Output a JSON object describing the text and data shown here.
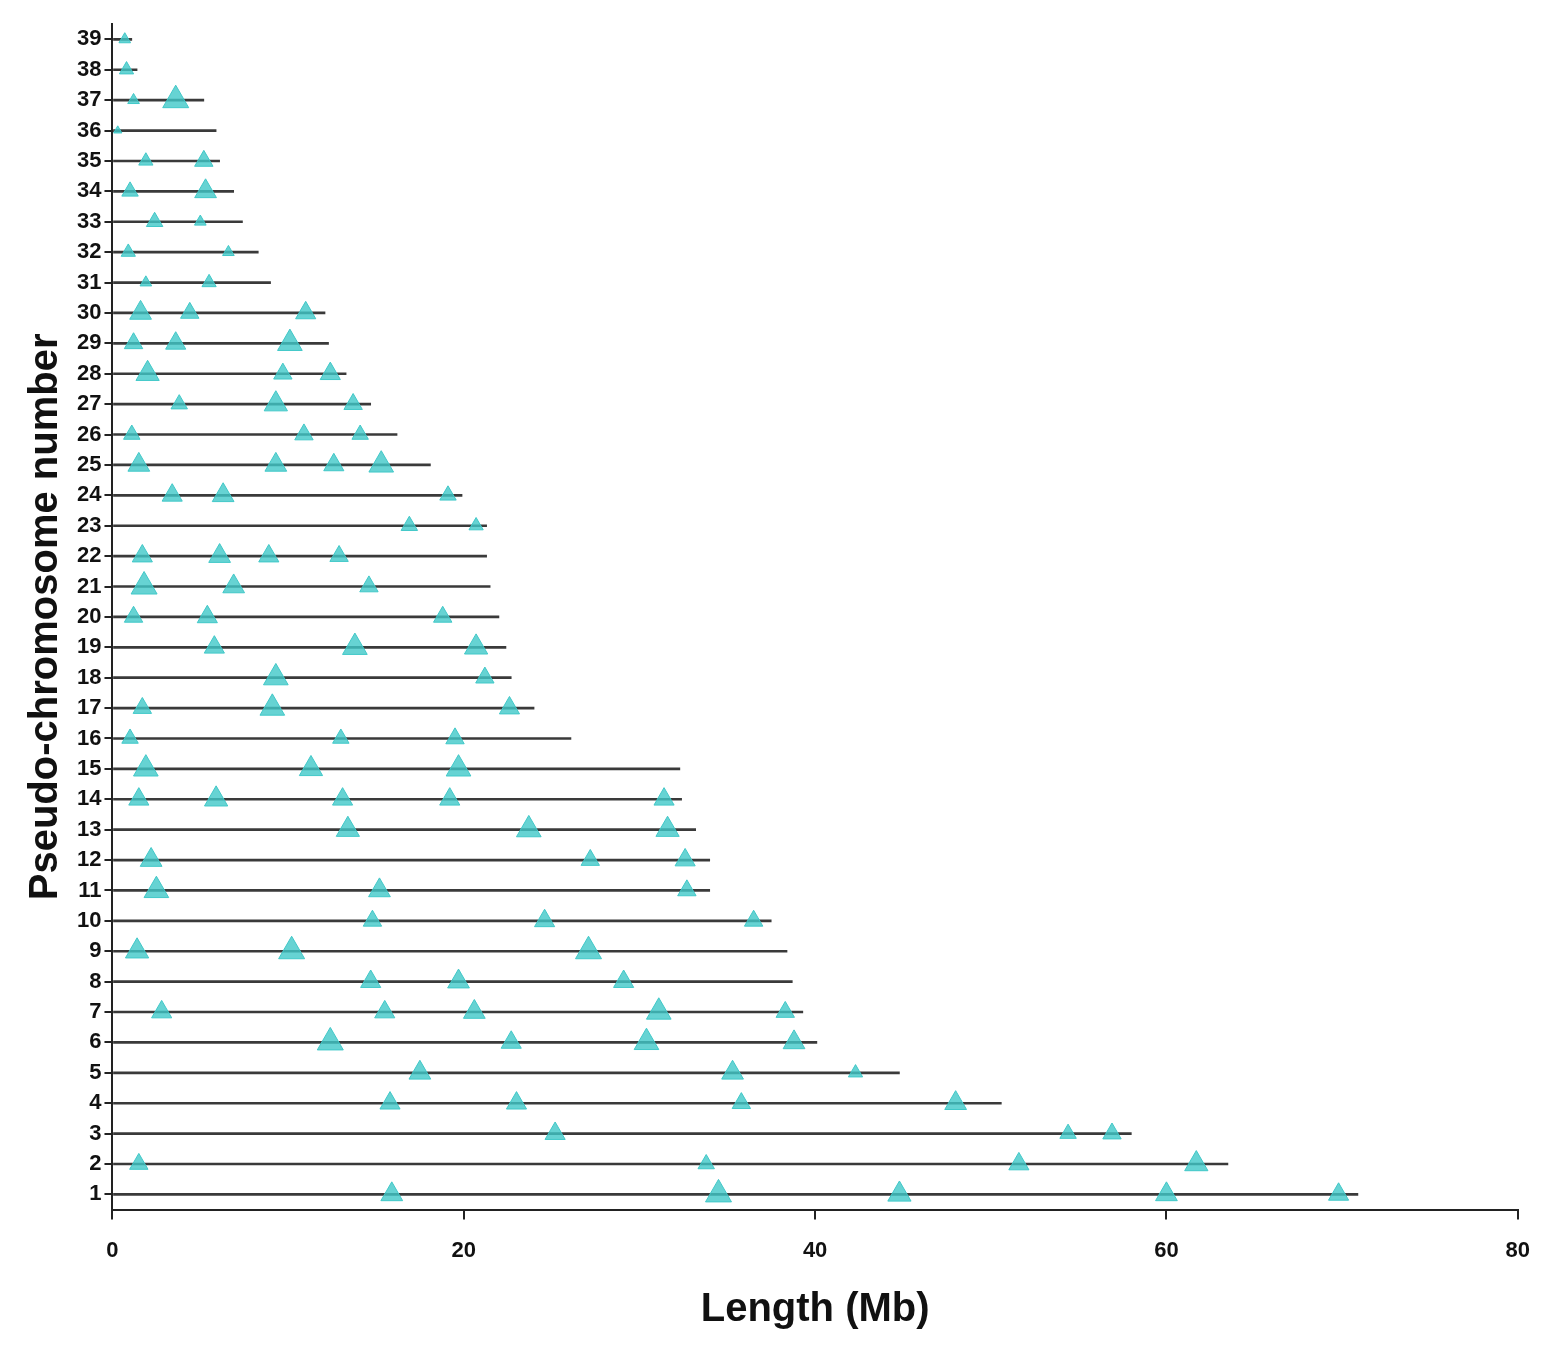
{
  "chart_data": {
    "type": "bar",
    "orientation": "horizontal",
    "xlabel": "Length (Mb)",
    "ylabel": "Pseudo-chromosome number",
    "categories": [
      "39",
      "38",
      "37",
      "36",
      "35",
      "34",
      "33",
      "32",
      "31",
      "30",
      "29",
      "28",
      "27",
      "26",
      "25",
      "24",
      "23",
      "22",
      "21",
      "20",
      "19",
      "18",
      "17",
      "16",
      "15",
      "14",
      "13",
      "12",
      "11",
      "10",
      "9",
      "8",
      "7",
      "6",
      "5",
      "4",
      "3",
      "2",
      "1"
    ],
    "xlim": [
      0,
      80
    ],
    "xticks": [
      0,
      20,
      40,
      60,
      80
    ],
    "grid": false,
    "legend": false,
    "series": [
      {
        "color": "#3a3a3a",
        "values": [
          1.1,
          1.4,
          5.2,
          5.9,
          6.1,
          6.9,
          7.4,
          8.3,
          9.0,
          12.1,
          12.3,
          13.3,
          14.7,
          16.2,
          18.1,
          19.9,
          21.3,
          21.3,
          21.5,
          22.0,
          22.4,
          22.7,
          24.0,
          26.1,
          32.3,
          32.4,
          33.2,
          34.0,
          34.0,
          37.5,
          38.4,
          38.7,
          39.3,
          40.1,
          44.8,
          50.6,
          58.0,
          63.5,
          70.9
        ]
      },
      {
        "type": "bubble",
        "color": "#40c8c8",
        "values": [
          0.7,
          0.8,
          3.6,
          1.2,
          0.3,
          5.2,
          1.9,
          5.3,
          1.0,
          2.4,
          5.0,
          0.9,
          6.6,
          5.5,
          1.9,
          1.6,
          11.0,
          4.4,
          1.2,
          3.6,
          10.1,
          2.0,
          12.4,
          9.7,
          9.3,
          13.7,
          3.8,
          10.9,
          1.1,
          14.1,
          15.3,
          9.3,
          1.5,
          12.6,
          6.3,
          3.4,
          19.1,
          16.9,
          20.7,
          6.1,
          1.7,
          8.9,
          12.9,
          1.8,
          6.9,
          14.6,
          5.4,
          1.2,
          18.8,
          20.7,
          13.8,
          5.8,
          9.3,
          21.2,
          9.1,
          22.6,
          1.7,
          1.0,
          13.0,
          19.5,
          1.9,
          11.3,
          19.7,
          1.5,
          5.9,
          13.1,
          19.2,
          31.4,
          13.4,
          23.7,
          31.6,
          2.2,
          32.6,
          27.2,
          2.5,
          15.2,
          32.7,
          24.6,
          36.5,
          14.8,
          10.2,
          27.1,
          1.4,
          14.7,
          19.7,
          29.1,
          31.1,
          20.6,
          15.5,
          2.8,
          38.3,
          12.4,
          30.4,
          38.8,
          22.7,
          17.5,
          35.3,
          42.3,
          48.0,
          15.8,
          23.0,
          35.8,
          25.2,
          56.9,
          54.4,
          61.7,
          51.6,
          1.5,
          33.8,
          34.5,
          44.8,
          60.0,
          69.8,
          15.9
        ],
        "x": [
          "39",
          "38",
          "37",
          "37",
          "36",
          "35",
          "35",
          "34",
          "34",
          "33",
          "33",
          "32",
          "32",
          "31",
          "31",
          "30",
          "30",
          "30",
          "29",
          "29",
          "29",
          "28",
          "28",
          "28",
          "27",
          "27",
          "27",
          "26",
          "26",
          "26",
          "25",
          "25",
          "25",
          "25",
          "24",
          "24",
          "24",
          "23",
          "23",
          "22",
          "22",
          "22",
          "22",
          "21",
          "21",
          "21",
          "20",
          "20",
          "20",
          "19",
          "19",
          "19",
          "18",
          "18",
          "17",
          "17",
          "17",
          "16",
          "16",
          "16",
          "15",
          "15",
          "15",
          "14",
          "14",
          "14",
          "14",
          "14",
          "13",
          "13",
          "13",
          "12",
          "12",
          "12",
          "11",
          "11",
          "11",
          "10",
          "10",
          "10",
          "9",
          "9",
          "9",
          "8",
          "8",
          "8",
          "7",
          "7",
          "7",
          "7",
          "7",
          "6",
          "6",
          "6",
          "6",
          "5",
          "5",
          "5",
          "4",
          "4",
          "4",
          "4",
          "3",
          "3",
          "3",
          "2",
          "2",
          "2",
          "2",
          "1",
          "1",
          "1",
          "1",
          "1"
        ],
        "sizes": [
          0.2,
          0.3,
          1.0,
          0.2,
          0.1,
          0.5,
          0.3,
          0.7,
          0.4,
          0.4,
          0.2,
          0.3,
          0.2,
          0.3,
          0.2,
          0.7,
          0.6,
          0.5,
          0.5,
          0.6,
          0.9,
          0.8,
          0.6,
          0.5,
          0.8,
          0.5,
          0.4,
          0.5,
          0.4,
          0.4,
          0.9,
          0.7,
          0.7,
          0.6,
          0.7,
          0.6,
          0.4,
          0.4,
          0.3,
          0.7,
          0.6,
          0.6,
          0.5,
          1.0,
          0.7,
          0.5,
          0.6,
          0.5,
          0.5,
          0.8,
          0.9,
          0.6,
          0.9,
          0.5,
          0.9,
          0.6,
          0.5,
          0.4,
          0.4,
          0.5,
          0.9,
          0.8,
          0.9,
          0.6,
          0.8,
          0.6,
          0.6,
          0.6,
          0.8,
          0.9,
          0.8,
          0.7,
          0.6,
          0.5,
          0.9,
          0.7,
          0.5,
          0.6,
          0.5,
          0.5,
          1.0,
          1.0,
          0.8,
          0.6,
          0.7,
          0.6,
          0.9,
          0.7,
          0.6,
          0.6,
          0.5,
          1.0,
          0.9,
          0.7,
          0.6,
          0.7,
          0.7,
          0.3,
          0.7,
          0.6,
          0.6,
          0.5,
          0.6,
          0.5,
          0.4,
          0.8,
          0.6,
          0.5,
          0.4,
          1.0,
          0.8,
          0.7,
          0.6,
          0.7
        ]
      }
    ]
  }
}
